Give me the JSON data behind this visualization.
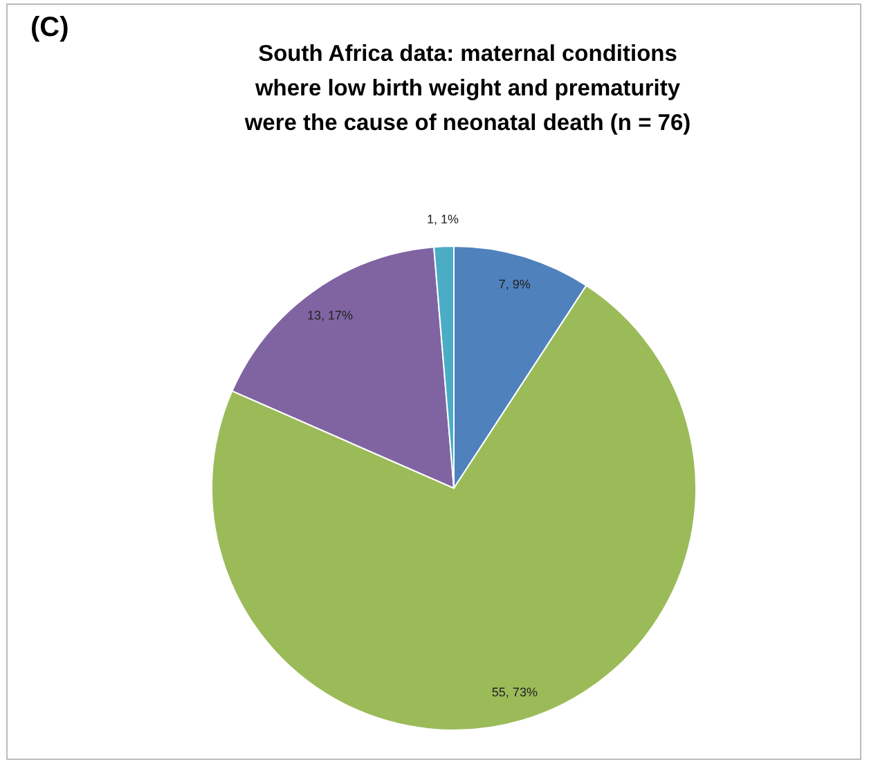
{
  "chart_data": {
    "type": "pie",
    "title": "South Africa data: maternal conditions\nwhere low birth weight and prematurity\nwere the cause of neonatal death (n = 76)",
    "annotations": [
      "(C)"
    ],
    "categories": [
      null,
      null,
      null,
      null
    ],
    "values": [
      7,
      55,
      13,
      1
    ],
    "colors": [
      "#4f81bd",
      "#9bbb59",
      "#8064a2",
      "#4bacc6"
    ],
    "value_labels": [
      "7, 9%",
      "55, 73%",
      "13, 17%",
      "1, 1%"
    ]
  }
}
